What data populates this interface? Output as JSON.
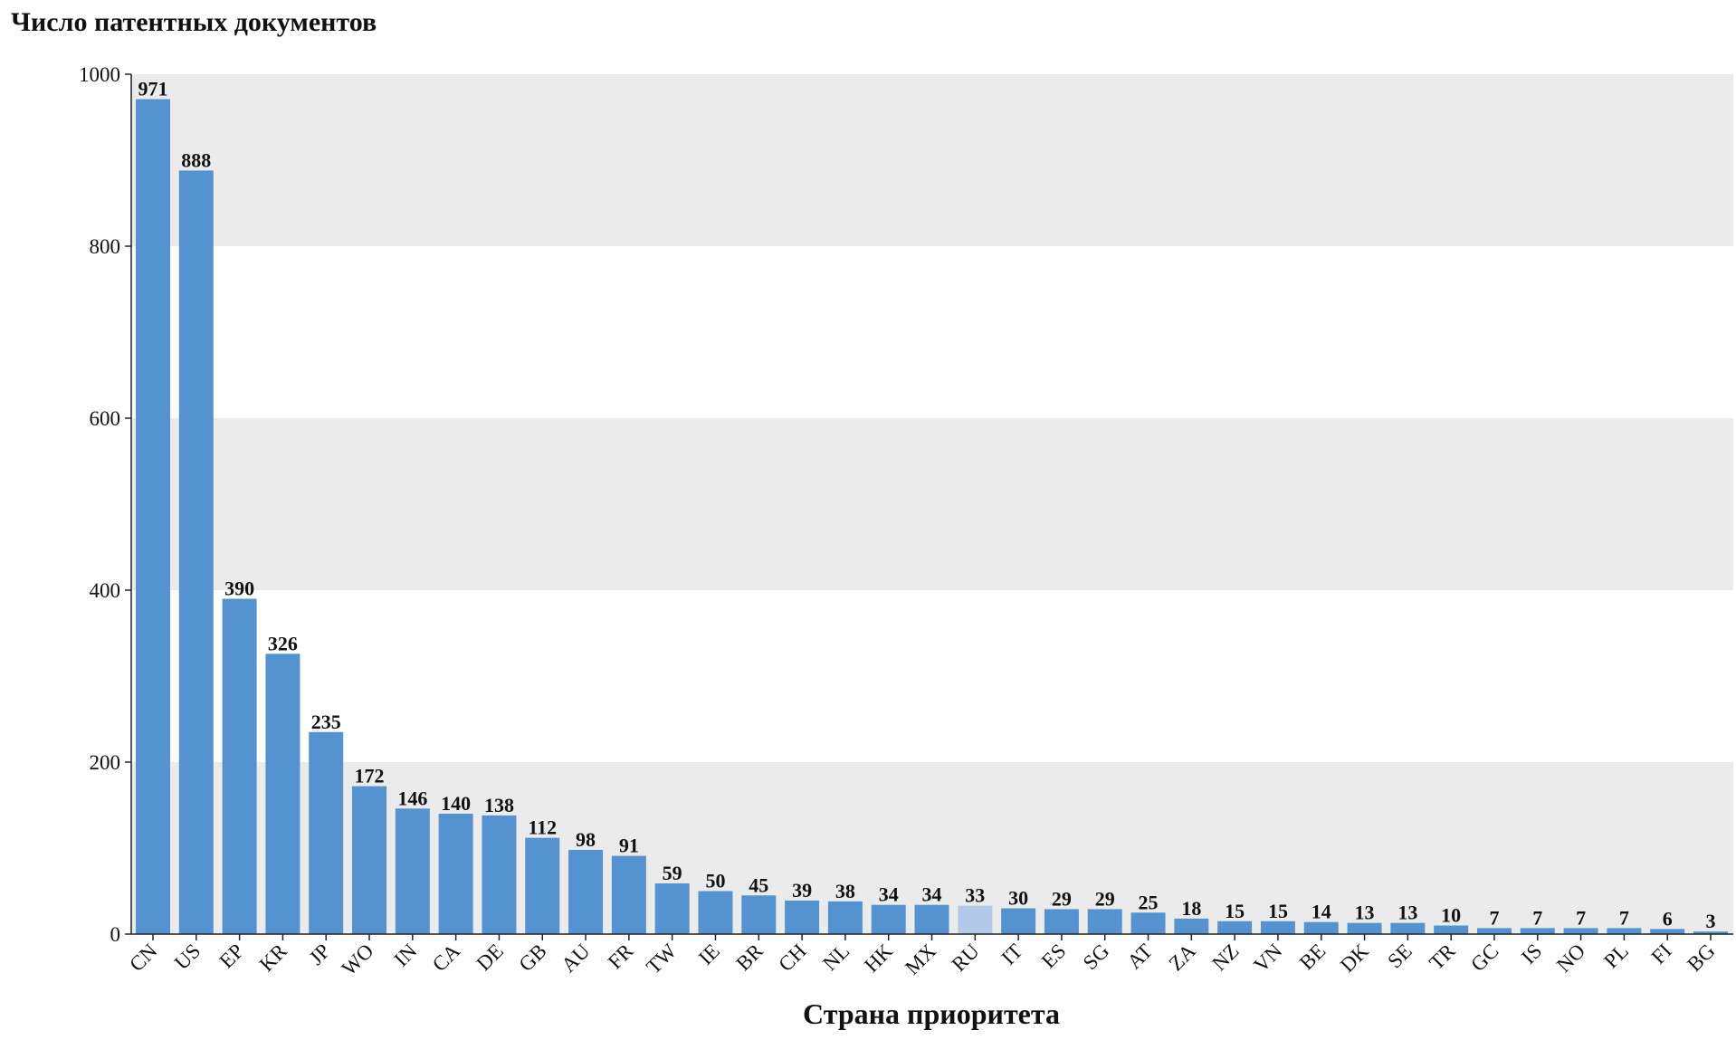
{
  "chart_data": {
    "type": "bar",
    "title": "",
    "ylabel": "Число патентных документов",
    "xlabel": "Страна приоритета",
    "ylim": [
      0,
      1000
    ],
    "yticks": [
      0,
      200,
      400,
      600,
      800,
      1000
    ],
    "categories": [
      "CN",
      "US",
      "EP",
      "KR",
      "JP",
      "WO",
      "IN",
      "CA",
      "DE",
      "GB",
      "AU",
      "FR",
      "TW",
      "IE",
      "BR",
      "CH",
      "NL",
      "HK",
      "MX",
      "RU",
      "IT",
      "ES",
      "SG",
      "AT",
      "ZA",
      "NZ",
      "VN",
      "BE",
      "DK",
      "SE",
      "TR",
      "GC",
      "IS",
      "NO",
      "PL",
      "FI",
      "BG"
    ],
    "values": [
      971,
      888,
      390,
      326,
      235,
      172,
      146,
      140,
      138,
      112,
      98,
      91,
      59,
      50,
      45,
      39,
      38,
      34,
      34,
      33,
      30,
      29,
      29,
      25,
      18,
      15,
      15,
      14,
      13,
      13,
      10,
      7,
      7,
      7,
      7,
      6,
      3
    ],
    "highlight_category": "RU",
    "bar_color": "#5593d0",
    "highlight_color": "#b3c9ea",
    "band_color": "#ebebeb",
    "grid": "alternating horizontal bands"
  }
}
